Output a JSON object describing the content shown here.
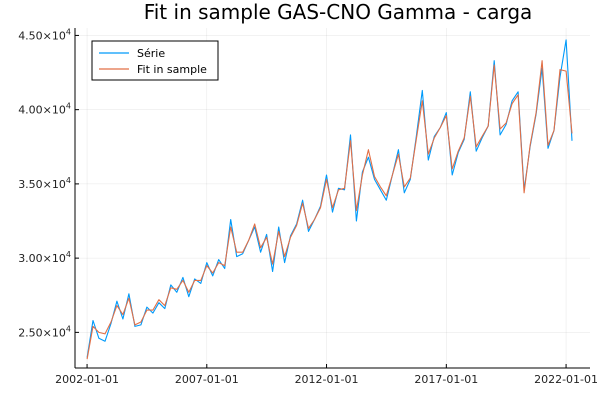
{
  "chart_data": {
    "type": "line",
    "title": "Fit in sample GAS-CNO Gamma - carga",
    "xlabel": "",
    "ylabel": "",
    "xlim": [
      "2001-07-01",
      "2023-01-01"
    ],
    "ylim": [
      22600,
      45500
    ],
    "grid": true,
    "legend_position": "top-left",
    "x_ticks": [
      {
        "date": "2002-01-01",
        "label": "2002-01-01"
      },
      {
        "date": "2007-01-01",
        "label": "2007-01-01"
      },
      {
        "date": "2012-01-01",
        "label": "2012-01-01"
      },
      {
        "date": "2017-01-01",
        "label": "2017-01-01"
      },
      {
        "date": "2022-01-01",
        "label": "2022-01-01"
      }
    ],
    "y_ticks": [
      {
        "value": 25000,
        "base": "2.50×10",
        "exp": "4"
      },
      {
        "value": 30000,
        "base": "3.00×10",
        "exp": "4"
      },
      {
        "value": 35000,
        "base": "3.50×10",
        "exp": "4"
      },
      {
        "value": 40000,
        "base": "4.00×10",
        "exp": "4"
      },
      {
        "value": 45000,
        "base": "4.50×10",
        "exp": "4"
      }
    ],
    "series": [
      {
        "name": "Série",
        "color": "#009AFA",
        "points": [
          [
            "2002-01-01",
            23300
          ],
          [
            "2002-04-01",
            25800
          ],
          [
            "2002-07-01",
            24600
          ],
          [
            "2002-10-01",
            24400
          ],
          [
            "2003-01-01",
            25600
          ],
          [
            "2003-04-01",
            27100
          ],
          [
            "2003-07-01",
            25900
          ],
          [
            "2003-10-01",
            27600
          ],
          [
            "2004-01-01",
            25400
          ],
          [
            "2004-04-01",
            25500
          ],
          [
            "2004-07-01",
            26700
          ],
          [
            "2004-10-01",
            26300
          ],
          [
            "2005-01-01",
            27000
          ],
          [
            "2005-04-01",
            26600
          ],
          [
            "2005-07-01",
            28200
          ],
          [
            "2005-10-01",
            27700
          ],
          [
            "2006-01-01",
            28700
          ],
          [
            "2006-04-01",
            27400
          ],
          [
            "2006-07-01",
            28600
          ],
          [
            "2006-10-01",
            28300
          ],
          [
            "2007-01-01",
            29700
          ],
          [
            "2007-04-01",
            28800
          ],
          [
            "2007-07-01",
            29900
          ],
          [
            "2007-10-01",
            29300
          ],
          [
            "2008-01-01",
            32600
          ],
          [
            "2008-04-01",
            30100
          ],
          [
            "2008-07-01",
            30300
          ],
          [
            "2008-10-01",
            31200
          ],
          [
            "2009-01-01",
            32100
          ],
          [
            "2009-04-01",
            30400
          ],
          [
            "2009-07-01",
            31600
          ],
          [
            "2009-10-01",
            29100
          ],
          [
            "2010-01-01",
            32100
          ],
          [
            "2010-04-01",
            29700
          ],
          [
            "2010-07-01",
            31500
          ],
          [
            "2010-10-01",
            32300
          ],
          [
            "2011-01-01",
            33900
          ],
          [
            "2011-04-01",
            31800
          ],
          [
            "2011-07-01",
            32600
          ],
          [
            "2011-10-01",
            33500
          ],
          [
            "2012-01-01",
            35600
          ],
          [
            "2012-04-01",
            33100
          ],
          [
            "2012-07-01",
            34700
          ],
          [
            "2012-10-01",
            34600
          ],
          [
            "2013-01-01",
            38300
          ],
          [
            "2013-04-01",
            32500
          ],
          [
            "2013-07-01",
            35800
          ],
          [
            "2013-10-01",
            36800
          ],
          [
            "2014-01-01",
            35300
          ],
          [
            "2014-04-01",
            34600
          ],
          [
            "2014-07-01",
            33900
          ],
          [
            "2014-10-01",
            35600
          ],
          [
            "2015-01-01",
            37300
          ],
          [
            "2015-04-01",
            34400
          ],
          [
            "2015-07-01",
            35300
          ],
          [
            "2015-10-01",
            38200
          ],
          [
            "2016-01-01",
            41300
          ],
          [
            "2016-04-01",
            36600
          ],
          [
            "2016-07-01",
            38200
          ],
          [
            "2016-10-01",
            38800
          ],
          [
            "2017-01-01",
            39800
          ],
          [
            "2017-04-01",
            35600
          ],
          [
            "2017-07-01",
            37100
          ],
          [
            "2017-10-01",
            38000
          ],
          [
            "2018-01-01",
            41200
          ],
          [
            "2018-04-01",
            37200
          ],
          [
            "2018-07-01",
            38100
          ],
          [
            "2018-10-01",
            38900
          ],
          [
            "2019-01-01",
            43300
          ],
          [
            "2019-04-01",
            38300
          ],
          [
            "2019-07-01",
            39000
          ],
          [
            "2019-10-01",
            40600
          ],
          [
            "2020-01-01",
            41200
          ],
          [
            "2020-04-01",
            34600
          ],
          [
            "2020-07-01",
            37500
          ],
          [
            "2020-10-01",
            39700
          ],
          [
            "2021-01-01",
            42800
          ],
          [
            "2021-04-01",
            37400
          ],
          [
            "2021-07-01",
            38600
          ],
          [
            "2021-10-01",
            42200
          ],
          [
            "2022-01-01",
            44700
          ],
          [
            "2022-04-01",
            37900
          ]
        ]
      },
      {
        "name": "Fit in sample",
        "color": "#E26F46",
        "points": [
          [
            "2002-01-01",
            23200
          ],
          [
            "2002-04-01",
            25400
          ],
          [
            "2002-07-01",
            25000
          ],
          [
            "2002-10-01",
            24900
          ],
          [
            "2003-01-01",
            25700
          ],
          [
            "2003-04-01",
            26800
          ],
          [
            "2003-07-01",
            26200
          ],
          [
            "2003-10-01",
            27300
          ],
          [
            "2004-01-01",
            25500
          ],
          [
            "2004-04-01",
            25700
          ],
          [
            "2004-07-01",
            26500
          ],
          [
            "2004-10-01",
            26500
          ],
          [
            "2005-01-01",
            27200
          ],
          [
            "2005-04-01",
            26800
          ],
          [
            "2005-07-01",
            28000
          ],
          [
            "2005-10-01",
            27900
          ],
          [
            "2006-01-01",
            28500
          ],
          [
            "2006-04-01",
            27700
          ],
          [
            "2006-07-01",
            28500
          ],
          [
            "2006-10-01",
            28500
          ],
          [
            "2007-01-01",
            29500
          ],
          [
            "2007-04-01",
            29000
          ],
          [
            "2007-07-01",
            29700
          ],
          [
            "2007-10-01",
            29500
          ],
          [
            "2008-01-01",
            32100
          ],
          [
            "2008-04-01",
            30400
          ],
          [
            "2008-07-01",
            30400
          ],
          [
            "2008-10-01",
            31200
          ],
          [
            "2009-01-01",
            32300
          ],
          [
            "2009-04-01",
            30700
          ],
          [
            "2009-07-01",
            31400
          ],
          [
            "2009-10-01",
            29600
          ],
          [
            "2010-01-01",
            31800
          ],
          [
            "2010-04-01",
            30100
          ],
          [
            "2010-07-01",
            31400
          ],
          [
            "2010-10-01",
            32200
          ],
          [
            "2011-01-01",
            33700
          ],
          [
            "2011-04-01",
            32000
          ],
          [
            "2011-07-01",
            32600
          ],
          [
            "2011-10-01",
            33400
          ],
          [
            "2012-01-01",
            35300
          ],
          [
            "2012-04-01",
            33400
          ],
          [
            "2012-07-01",
            34600
          ],
          [
            "2012-10-01",
            34700
          ],
          [
            "2013-01-01",
            37900
          ],
          [
            "2013-04-01",
            33200
          ],
          [
            "2013-07-01",
            35600
          ],
          [
            "2013-10-01",
            37300
          ],
          [
            "2014-01-01",
            35500
          ],
          [
            "2014-04-01",
            34800
          ],
          [
            "2014-07-01",
            34200
          ],
          [
            "2014-10-01",
            35600
          ],
          [
            "2015-01-01",
            37000
          ],
          [
            "2015-04-01",
            34800
          ],
          [
            "2015-07-01",
            35400
          ],
          [
            "2015-10-01",
            38000
          ],
          [
            "2016-01-01",
            40600
          ],
          [
            "2016-04-01",
            37000
          ],
          [
            "2016-07-01",
            38100
          ],
          [
            "2016-10-01",
            38800
          ],
          [
            "2017-01-01",
            39600
          ],
          [
            "2017-04-01",
            36000
          ],
          [
            "2017-07-01",
            37200
          ],
          [
            "2017-10-01",
            38100
          ],
          [
            "2018-01-01",
            40900
          ],
          [
            "2018-04-01",
            37500
          ],
          [
            "2018-07-01",
            38200
          ],
          [
            "2018-10-01",
            38900
          ],
          [
            "2019-01-01",
            43000
          ],
          [
            "2019-04-01",
            38700
          ],
          [
            "2019-07-01",
            39100
          ],
          [
            "2019-10-01",
            40400
          ],
          [
            "2020-01-01",
            41000
          ],
          [
            "2020-04-01",
            34400
          ],
          [
            "2020-07-01",
            37600
          ],
          [
            "2020-10-01",
            39800
          ],
          [
            "2021-01-01",
            43300
          ],
          [
            "2021-04-01",
            37600
          ],
          [
            "2021-07-01",
            38600
          ],
          [
            "2021-10-01",
            42700
          ],
          [
            "2022-01-01",
            42600
          ],
          [
            "2022-04-01",
            38400
          ]
        ]
      }
    ]
  }
}
